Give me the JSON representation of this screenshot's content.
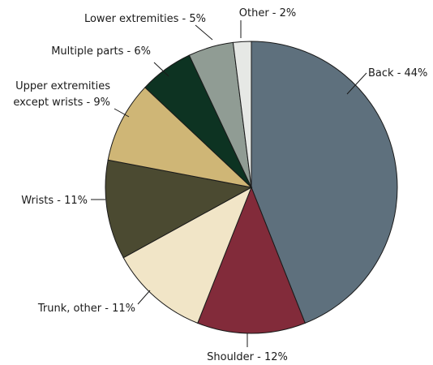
{
  "chart_data": {
    "type": "pie",
    "title": "",
    "start_angle_deg": 0,
    "direction": "clockwise",
    "legend": "none",
    "slices": [
      {
        "label": "Back - 44%",
        "value": 44,
        "color": "#5e707d"
      },
      {
        "label": "Shoulder - 12%",
        "value": 12,
        "color": "#822b3a"
      },
      {
        "label": "Trunk, other - 11%",
        "value": 11,
        "color": "#f1e5c7"
      },
      {
        "label": "Wrists - 11%",
        "value": 11,
        "color": "#4b4a31"
      },
      {
        "label": [
          "Upper extremities",
          "except wrists - 9%"
        ],
        "value": 9,
        "color": "#cfb676"
      },
      {
        "label": "Multiple parts - 6%",
        "value": 6,
        "color": "#0d3322"
      },
      {
        "label": "Lower extremities - 5%",
        "value": 5,
        "color": "#909c94"
      },
      {
        "label": "Other - 2%",
        "value": 2,
        "color": "#e6e8e5"
      }
    ]
  }
}
